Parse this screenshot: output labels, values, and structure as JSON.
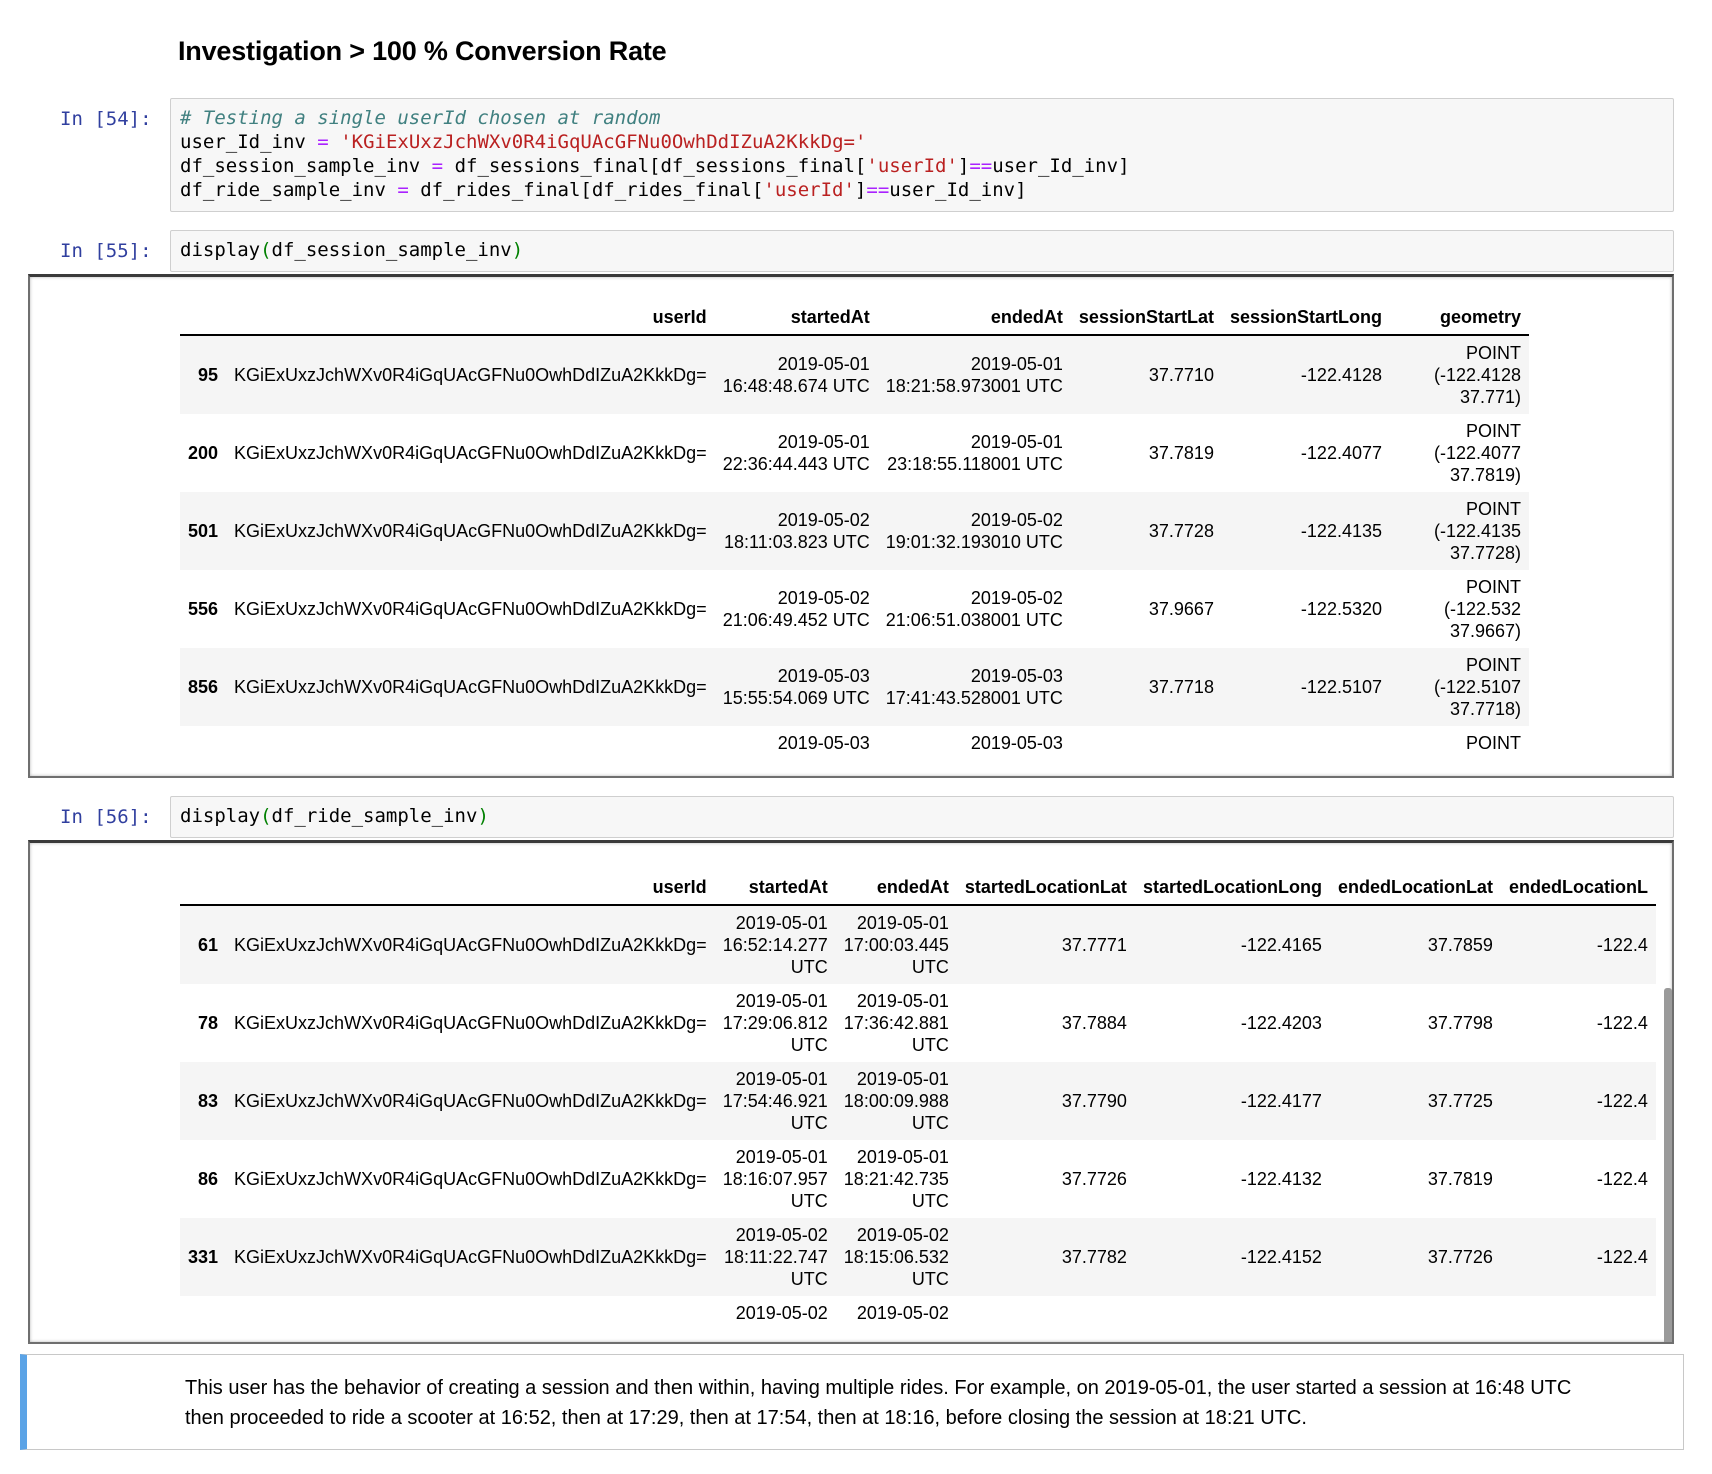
{
  "heading": "Investigation > 100 % Conversion Rate",
  "cells": {
    "c54": {
      "prompt": "In [54]:",
      "line1": "# Testing a single userId chosen at random",
      "line2": {
        "a": "user_Id_inv ",
        "op": "=",
        "sp": " ",
        "str": "'KGiExUxzJchWXv0R4iGqUAcGFNu0OwhDdIZuA2KkkDg='"
      },
      "line3": {
        "a": "df_session_sample_inv ",
        "op1": "=",
        "b": " df_sessions_final[df_sessions_final[",
        "str": "'userId'",
        "c": "]",
        "op2": "==",
        "d": "user_Id_inv]"
      },
      "line4": {
        "a": "df_ride_sample_inv ",
        "op1": "=",
        "b": " df_rides_final[df_rides_final[",
        "str": "'userId'",
        "c": "]",
        "op2": "==",
        "d": "user_Id_inv]"
      }
    },
    "c55": {
      "prompt": "In [55]:",
      "fn": "display",
      "lp": "(",
      "arg": "df_session_sample_inv",
      "rp": ")"
    },
    "c56": {
      "prompt": "In [56]:",
      "fn": "display",
      "lp": "(",
      "arg": "df_ride_sample_inv",
      "rp": ")"
    }
  },
  "sessions_table": {
    "columns": [
      "",
      "userId",
      "startedAt",
      "endedAt",
      "sessionStartLat",
      "sessionStartLong",
      "geometry"
    ],
    "rows": [
      {
        "idx": "95",
        "userId": "KGiExUxzJchWXv0R4iGqUAcGFNu0OwhDdIZuA2KkkDg=",
        "startedAt_d": "2019-05-01",
        "startedAt_t": "16:48:48.674 UTC",
        "endedAt_d": "2019-05-01",
        "endedAt_t": "18:21:58.973001 UTC",
        "lat": "37.7710",
        "long": "-122.4128",
        "geo1": "POINT",
        "geo2": "(-122.4128",
        "geo3": "37.771)"
      },
      {
        "idx": "200",
        "userId": "KGiExUxzJchWXv0R4iGqUAcGFNu0OwhDdIZuA2KkkDg=",
        "startedAt_d": "2019-05-01",
        "startedAt_t": "22:36:44.443 UTC",
        "endedAt_d": "2019-05-01",
        "endedAt_t": "23:18:55.118001 UTC",
        "lat": "37.7819",
        "long": "-122.4077",
        "geo1": "POINT",
        "geo2": "(-122.4077",
        "geo3": "37.7819)"
      },
      {
        "idx": "501",
        "userId": "KGiExUxzJchWXv0R4iGqUAcGFNu0OwhDdIZuA2KkkDg=",
        "startedAt_d": "2019-05-02",
        "startedAt_t": "18:11:03.823 UTC",
        "endedAt_d": "2019-05-02",
        "endedAt_t": "19:01:32.193010 UTC",
        "lat": "37.7728",
        "long": "-122.4135",
        "geo1": "POINT",
        "geo2": "(-122.4135",
        "geo3": "37.7728)"
      },
      {
        "idx": "556",
        "userId": "KGiExUxzJchWXv0R4iGqUAcGFNu0OwhDdIZuA2KkkDg=",
        "startedAt_d": "2019-05-02",
        "startedAt_t": "21:06:49.452 UTC",
        "endedAt_d": "2019-05-02",
        "endedAt_t": "21:06:51.038001 UTC",
        "lat": "37.9667",
        "long": "-122.5320",
        "geo1": "POINT",
        "geo2": "(-122.532",
        "geo3": "37.9667)"
      },
      {
        "idx": "856",
        "userId": "KGiExUxzJchWXv0R4iGqUAcGFNu0OwhDdIZuA2KkkDg=",
        "startedAt_d": "2019-05-03",
        "startedAt_t": "15:55:54.069 UTC",
        "endedAt_d": "2019-05-03",
        "endedAt_t": "17:41:43.528001 UTC",
        "lat": "37.7718",
        "long": "-122.5107",
        "geo1": "POINT",
        "geo2": "(-122.5107",
        "geo3": "37.7718)"
      }
    ],
    "partial_row": {
      "startedAt_d": "2019-05-03",
      "endedAt_d": "2019-05-03",
      "geo1": "POINT"
    }
  },
  "rides_table": {
    "columns": [
      "",
      "userId",
      "startedAt",
      "endedAt",
      "startedLocationLat",
      "startedLocationLong",
      "endedLocationLat",
      "endedLocationL"
    ],
    "rows": [
      {
        "idx": "61",
        "userId": "KGiExUxzJchWXv0R4iGqUAcGFNu0OwhDdIZuA2KkkDg=",
        "s1": "2019-05-01",
        "s2": "16:52:14.277",
        "s3": "UTC",
        "e1": "2019-05-01",
        "e2": "17:00:03.445",
        "e3": "UTC",
        "slat": "37.7771",
        "slong": "-122.4165",
        "elat": "37.7859",
        "elong": "-122.4"
      },
      {
        "idx": "78",
        "userId": "KGiExUxzJchWXv0R4iGqUAcGFNu0OwhDdIZuA2KkkDg=",
        "s1": "2019-05-01",
        "s2": "17:29:06.812",
        "s3": "UTC",
        "e1": "2019-05-01",
        "e2": "17:36:42.881",
        "e3": "UTC",
        "slat": "37.7884",
        "slong": "-122.4203",
        "elat": "37.7798",
        "elong": "-122.4"
      },
      {
        "idx": "83",
        "userId": "KGiExUxzJchWXv0R4iGqUAcGFNu0OwhDdIZuA2KkkDg=",
        "s1": "2019-05-01",
        "s2": "17:54:46.921",
        "s3": "UTC",
        "e1": "2019-05-01",
        "e2": "18:00:09.988",
        "e3": "UTC",
        "slat": "37.7790",
        "slong": "-122.4177",
        "elat": "37.7725",
        "elong": "-122.4"
      },
      {
        "idx": "86",
        "userId": "KGiExUxzJchWXv0R4iGqUAcGFNu0OwhDdIZuA2KkkDg=",
        "s1": "2019-05-01",
        "s2": "18:16:07.957",
        "s3": "UTC",
        "e1": "2019-05-01",
        "e2": "18:21:42.735",
        "e3": "UTC",
        "slat": "37.7726",
        "slong": "-122.4132",
        "elat": "37.7819",
        "elong": "-122.4"
      },
      {
        "idx": "331",
        "userId": "KGiExUxzJchWXv0R4iGqUAcGFNu0OwhDdIZuA2KkkDg=",
        "s1": "2019-05-02",
        "s2": "18:11:22.747",
        "s3": "UTC",
        "e1": "2019-05-02",
        "e2": "18:15:06.532",
        "e3": "UTC",
        "slat": "37.7782",
        "slong": "-122.4152",
        "elat": "37.7726",
        "elong": "-122.4"
      }
    ],
    "partial_row": {
      "s1": "2019-05-02",
      "e1": "2019-05-02"
    }
  },
  "markdown": {
    "line1": "This user has the behavior of creating a session and then within, having multiple rides. For example, on 2019-05-01, the user started a session at 16:48 UTC",
    "line2": "then proceeded to ride a scooter at 16:52, then at 17:29, then at 17:54, then at 18:16, before closing the session at 18:21 UTC."
  },
  "colors": {
    "prompt": "#303f9f",
    "comment": "#408080",
    "string": "#ba2121",
    "operator": "#aa22ff",
    "paren": "#008000",
    "md_accent": "#5ba3e6"
  }
}
